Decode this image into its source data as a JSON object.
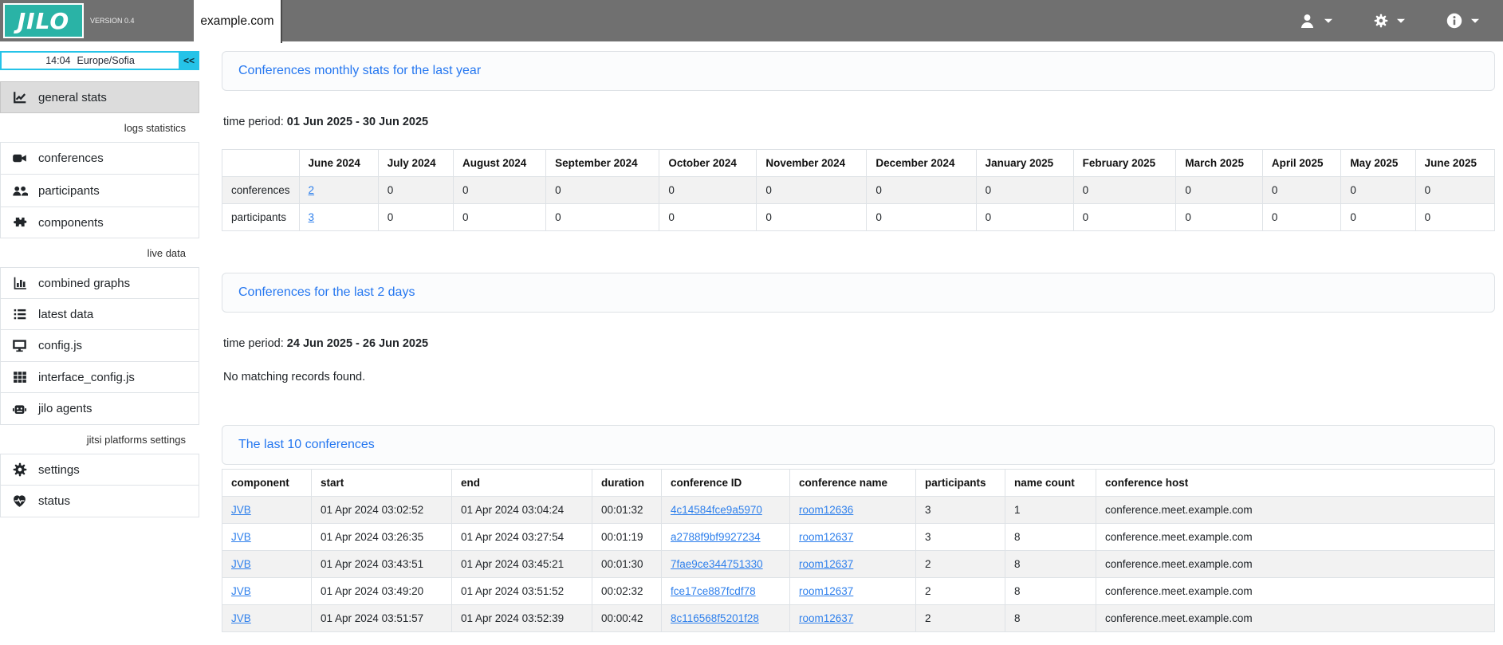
{
  "topbar": {
    "logo": "JILO",
    "version": "VERSION 0.4",
    "tab": "example.com",
    "menus": [
      {
        "name": "user-menu",
        "icon": "user-icon"
      },
      {
        "name": "settings-menu",
        "icon": "gear-icon"
      },
      {
        "name": "info-menu",
        "icon": "info-icon"
      }
    ]
  },
  "sidebar": {
    "clock": {
      "time": "14:04",
      "timezone": "Europe/Sofia",
      "collapse_label": "<<"
    },
    "sections": [
      {
        "header": null,
        "items": [
          {
            "icon": "chart-line-icon",
            "label": "general stats",
            "active": true
          }
        ]
      },
      {
        "header": "logs statistics",
        "items": [
          {
            "icon": "video-icon",
            "label": "conferences"
          },
          {
            "icon": "users-icon",
            "label": "participants"
          },
          {
            "icon": "puzzle-icon",
            "label": "components"
          }
        ]
      },
      {
        "header": "live data",
        "items": [
          {
            "icon": "chart-column-icon",
            "label": "combined graphs"
          },
          {
            "icon": "list-icon",
            "label": "latest data"
          },
          {
            "icon": "display-icon",
            "label": "config.js"
          },
          {
            "icon": "grid-icon",
            "label": "interface_config.js"
          },
          {
            "icon": "robot-icon",
            "label": "jilo agents"
          }
        ]
      },
      {
        "header": "jitsi platforms settings",
        "items": [
          {
            "icon": "gear-icon",
            "label": "settings"
          },
          {
            "icon": "heart-pulse-icon",
            "label": "status"
          }
        ]
      }
    ]
  },
  "main": {
    "monthly": {
      "title": "Conferences monthly stats for the last year",
      "time_period_label": "time period:",
      "time_period": "01 Jun 2025 - 30 Jun 2025",
      "table": {
        "columns": [
          "",
          "June 2024",
          "July 2024",
          "August 2024",
          "September 2024",
          "October 2024",
          "November 2024",
          "December 2024",
          "January 2025",
          "February 2025",
          "March 2025",
          "April 2025",
          "May 2025",
          "June 2025"
        ],
        "rows": [
          [
            "conferences",
            {
              "text": "2",
              "link": true
            },
            "0",
            "0",
            "0",
            "0",
            "0",
            "0",
            "0",
            "0",
            "0",
            "0",
            "0",
            "0"
          ],
          [
            "participants",
            {
              "text": "3",
              "link": true
            },
            "0",
            "0",
            "0",
            "0",
            "0",
            "0",
            "0",
            "0",
            "0",
            "0",
            "0",
            "0"
          ]
        ]
      }
    },
    "last2days": {
      "title": "Conferences for the last 2 days",
      "time_period_label": "time period:",
      "time_period": "24 Jun 2025 - 26 Jun 2025",
      "empty_message": "No matching records found."
    },
    "last10": {
      "title": "The last 10 conferences",
      "table": {
        "columns": [
          "component",
          "start",
          "end",
          "duration",
          "conference ID",
          "conference name",
          "participants",
          "name count",
          "conference host"
        ],
        "rows": [
          [
            {
              "text": "JVB",
              "link": true
            },
            "01 Apr 2024 03:02:52",
            "01 Apr 2024 03:04:24",
            "00:01:32",
            {
              "text": "4c14584fce9a5970",
              "link": true
            },
            {
              "text": "room12636",
              "link": true
            },
            "3",
            "1",
            "conference.meet.example.com"
          ],
          [
            {
              "text": "JVB",
              "link": true
            },
            "01 Apr 2024 03:26:35",
            "01 Apr 2024 03:27:54",
            "00:01:19",
            {
              "text": "a2788f9bf9927234",
              "link": true
            },
            {
              "text": "room12637",
              "link": true
            },
            "3",
            "8",
            "conference.meet.example.com"
          ],
          [
            {
              "text": "JVB",
              "link": true
            },
            "01 Apr 2024 03:43:51",
            "01 Apr 2024 03:45:21",
            "00:01:30",
            {
              "text": "7fae9ce344751330",
              "link": true
            },
            {
              "text": "room12637",
              "link": true
            },
            "2",
            "8",
            "conference.meet.example.com"
          ],
          [
            {
              "text": "JVB",
              "link": true
            },
            "01 Apr 2024 03:49:20",
            "01 Apr 2024 03:51:52",
            "00:02:32",
            {
              "text": "fce17ce887fcdf78",
              "link": true
            },
            {
              "text": "room12637",
              "link": true
            },
            "2",
            "8",
            "conference.meet.example.com"
          ],
          [
            {
              "text": "JVB",
              "link": true
            },
            "01 Apr 2024 03:51:57",
            "01 Apr 2024 03:52:39",
            "00:00:42",
            {
              "text": "8c116568f5201f28",
              "link": true
            },
            {
              "text": "room12637",
              "link": true
            },
            "2",
            "8",
            "conference.meet.example.com"
          ]
        ]
      }
    }
  },
  "colors": {
    "brand_teal": "#2ab3a6",
    "topbar_gray": "#707070",
    "accent_cyan": "#25c3e8",
    "link_blue": "#2f80ec",
    "active_item_bg": "#dcdcdc",
    "stripe_bg": "#f2f2f2",
    "table_border": "#dee2e6"
  }
}
